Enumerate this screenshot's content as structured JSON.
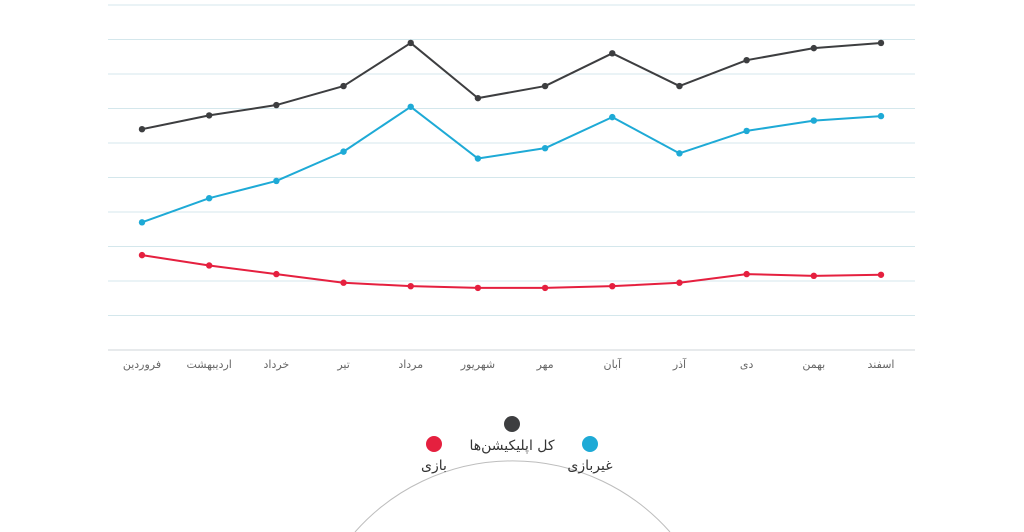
{
  "chart_data": {
    "type": "line",
    "title": "",
    "xlabel": "",
    "ylabel": "",
    "ylim": [
      0,
      100
    ],
    "grid": true,
    "legend_position": "bottom",
    "categories": [
      "فروردین",
      "اردیبهشت",
      "خرداد",
      "تیر",
      "مرداد",
      "شهریور",
      "مهر",
      "آبان",
      "آذر",
      "دی",
      "بهمن",
      "اسفند"
    ],
    "series": [
      {
        "name": "کل اپلیکیشن‌ها",
        "color": "#3d3e40",
        "values": [
          64.0,
          68.0,
          71.0,
          76.5,
          89.0,
          73.0,
          76.5,
          86.0,
          76.5,
          84.0,
          87.5,
          89.0
        ]
      },
      {
        "name": "غیربازی",
        "color": "#1eaad6",
        "values": [
          37.0,
          44.0,
          49.0,
          57.5,
          70.5,
          55.5,
          58.5,
          67.5,
          57.0,
          63.5,
          66.5,
          67.8
        ]
      },
      {
        "name": "بازی",
        "color": "#e5203f",
        "values": [
          27.5,
          24.5,
          22.0,
          19.5,
          18.5,
          18.0,
          18.0,
          18.5,
          19.5,
          22.0,
          21.5,
          21.8
        ]
      }
    ]
  },
  "legend": {
    "all_apps": "کل اپلیکیشن‌ها",
    "non_game": "غیربازی",
    "game": "بازی"
  }
}
